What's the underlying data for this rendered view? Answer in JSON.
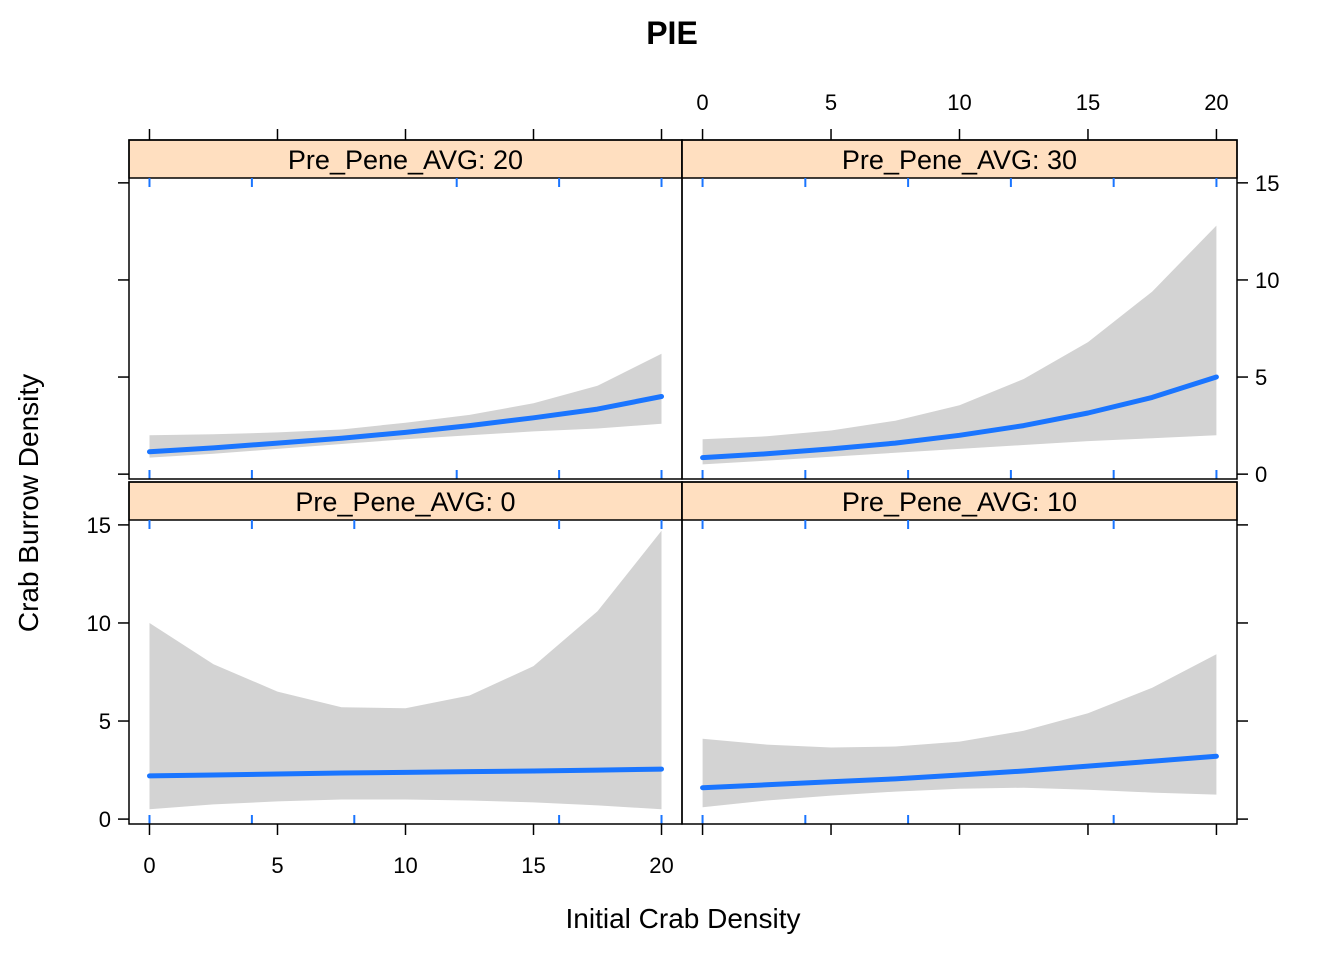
{
  "chart_data": {
    "type": "line",
    "title": "PIE",
    "xlabel": "Initial Crab Density",
    "ylabel": "Crab Burrow Density",
    "xlim": [
      -0.8,
      20.8
    ],
    "ylim": [
      -0.25,
      15.25
    ],
    "x_ticks": [
      0,
      5,
      10,
      15,
      20
    ],
    "y_ticks": [
      0,
      5,
      10,
      15
    ],
    "x": [
      0,
      2.5,
      5,
      7.5,
      10,
      12.5,
      15,
      17.5,
      20
    ],
    "colors": {
      "line": "#1a75ff",
      "band": "#d3d3d3",
      "strip": "#ffdfc0",
      "rug": "#1a75ff"
    },
    "panels": [
      {
        "strip_label": "Pre_Pene_AVG: 20",
        "fit": [
          1.15,
          1.35,
          1.6,
          1.85,
          2.15,
          2.5,
          2.9,
          3.35,
          4.0
        ],
        "lower": [
          0.85,
          1.05,
          1.3,
          1.55,
          1.8,
          2.0,
          2.2,
          2.35,
          2.6
        ],
        "upper": [
          2.0,
          2.05,
          2.15,
          2.3,
          2.65,
          3.05,
          3.65,
          4.55,
          6.2
        ],
        "rug": [
          0,
          4,
          12,
          16,
          20
        ]
      },
      {
        "strip_label": "Pre_Pene_AVG: 30",
        "fit": [
          0.85,
          1.05,
          1.3,
          1.6,
          2.0,
          2.5,
          3.15,
          3.95,
          5.0
        ],
        "lower": [
          0.5,
          0.7,
          0.9,
          1.1,
          1.3,
          1.5,
          1.7,
          1.85,
          2.0
        ],
        "upper": [
          1.8,
          1.95,
          2.25,
          2.75,
          3.55,
          4.9,
          6.8,
          9.4,
          12.8
        ],
        "rug": [
          0,
          4,
          8,
          12,
          16,
          20
        ]
      },
      {
        "strip_label": "Pre_Pene_AVG: 0",
        "fit": [
          2.2,
          2.25,
          2.3,
          2.35,
          2.38,
          2.42,
          2.45,
          2.5,
          2.55
        ],
        "lower": [
          0.5,
          0.75,
          0.9,
          1.0,
          1.0,
          0.95,
          0.85,
          0.7,
          0.5
        ],
        "upper": [
          10.0,
          7.9,
          6.5,
          5.7,
          5.65,
          6.3,
          7.8,
          10.6,
          14.7
        ],
        "rug": [
          0,
          4,
          8,
          16,
          20
        ]
      },
      {
        "strip_label": "Pre_Pene_AVG: 10",
        "fit": [
          1.6,
          1.75,
          1.9,
          2.05,
          2.25,
          2.45,
          2.7,
          2.95,
          3.2
        ],
        "lower": [
          0.6,
          0.95,
          1.2,
          1.4,
          1.55,
          1.6,
          1.5,
          1.35,
          1.25
        ],
        "upper": [
          4.1,
          3.8,
          3.65,
          3.7,
          3.95,
          4.5,
          5.4,
          6.7,
          8.4
        ],
        "rug": [
          0,
          4,
          8,
          16
        ]
      }
    ]
  }
}
